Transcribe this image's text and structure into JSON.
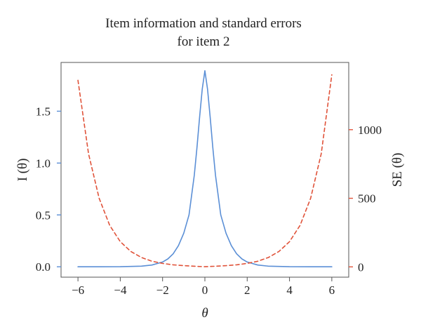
{
  "chart_data": {
    "type": "line",
    "title_lines": [
      "Item information and standard errors",
      "for item 2"
    ],
    "xlabel": "θ",
    "ylabel_left": "I (θ)",
    "ylabel_right": "SE (θ)",
    "xlim": [
      -6.8,
      6.8
    ],
    "ylim_left": [
      -0.1,
      1.97
    ],
    "ylim_right": [
      -75,
      1490
    ],
    "x_ticks": [
      -6,
      -4,
      -2,
      0,
      2,
      4,
      6
    ],
    "x_tick_labels": [
      "−6",
      "−4",
      "−2",
      "0",
      "2",
      "4",
      "6"
    ],
    "y_left_ticks": [
      0.0,
      0.5,
      1.0,
      1.5
    ],
    "y_left_tick_labels": [
      "0.0",
      "0.5",
      "1.0",
      "1.5"
    ],
    "y_right_ticks": [
      0,
      500,
      1000
    ],
    "y_right_tick_labels": [
      "0",
      "500",
      "1000"
    ],
    "grid": false,
    "series": [
      {
        "key": "information",
        "axis": "left",
        "style": "solid",
        "color": "#5b8fd6",
        "x": [
          -6.0,
          -5.0,
          -4.0,
          -3.0,
          -2.5,
          -2.0,
          -1.75,
          -1.5,
          -1.25,
          -1.0,
          -0.75,
          -0.5,
          -0.375,
          -0.25,
          -0.125,
          0.0,
          0.125,
          0.25,
          0.375,
          0.5,
          0.75,
          1.0,
          1.25,
          1.5,
          1.75,
          2.0,
          2.5,
          3.0,
          4.0,
          5.0,
          6.0
        ],
        "y": [
          0.0,
          0.0,
          0.0008,
          0.0063,
          0.017,
          0.046,
          0.076,
          0.125,
          0.204,
          0.324,
          0.501,
          0.883,
          1.149,
          1.445,
          1.711,
          1.89,
          1.711,
          1.445,
          1.149,
          0.883,
          0.501,
          0.324,
          0.204,
          0.125,
          0.076,
          0.046,
          0.017,
          0.0063,
          0.0008,
          0.0,
          0.0
        ]
      },
      {
        "key": "standard-error",
        "axis": "right",
        "style": "dashed",
        "color": "#e0533a",
        "x": [
          -6.0,
          -5.5,
          -5.0,
          -4.5,
          -4.0,
          -3.5,
          -3.0,
          -2.5,
          -2.0,
          -1.5,
          -1.0,
          -0.5,
          0.0,
          0.5,
          1.0,
          1.5,
          2.0,
          2.5,
          3.0,
          3.5,
          4.0,
          4.5,
          5.0,
          5.5,
          6.0
        ],
        "y": [
          1360,
          824,
          500,
          303,
          184,
          112,
          68,
          41,
          25,
          15,
          9,
          5,
          1,
          5,
          9,
          15,
          25,
          41,
          68,
          112,
          184,
          303,
          500,
          824,
          1400
        ]
      }
    ]
  }
}
